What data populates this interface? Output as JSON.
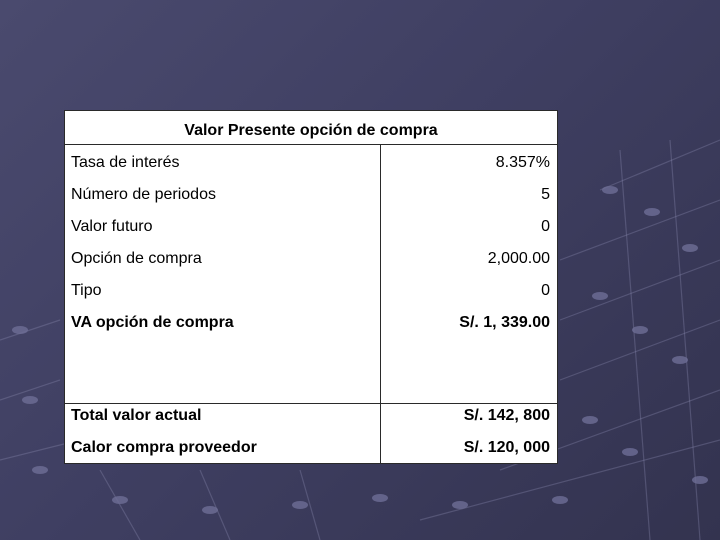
{
  "table": {
    "title": "Valor Presente opción de compra",
    "rows": [
      {
        "label": "Tasa de interés",
        "value": "8.357%"
      },
      {
        "label": "Número de periodos",
        "value": "5"
      },
      {
        "label": "Valor futuro",
        "value": "0"
      },
      {
        "label": "Opción de compra",
        "value": "2,000.00"
      },
      {
        "label": "Tipo",
        "value": "0"
      },
      {
        "label": "VA opción de compra",
        "value": "S/. 1, 339.00"
      },
      {
        "label": "Total valor actual",
        "value": "S/. 142, 800"
      },
      {
        "label": "Calor compra proveedor",
        "value": "S/. 120, 000"
      }
    ]
  },
  "colors": {
    "background": "#3f3f62",
    "table_bg": "#ffffff",
    "border": "#2a2a2a"
  }
}
